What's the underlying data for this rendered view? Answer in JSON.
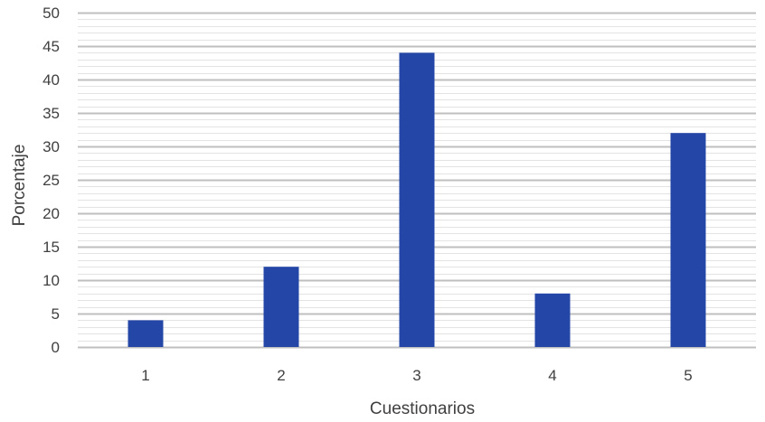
{
  "chart_data": {
    "type": "bar",
    "categories": [
      "1",
      "2",
      "3",
      "4",
      "5"
    ],
    "values": [
      4,
      12,
      44,
      8,
      32
    ],
    "title": "",
    "xlabel": "Cuestionarios",
    "ylabel": "Porcentaje",
    "ylim": [
      0,
      50
    ],
    "yticks": [
      "0",
      "5",
      "10",
      "15",
      "20",
      "25",
      "30",
      "35",
      "40",
      "45",
      "50"
    ],
    "grid": "major and minor horizontal",
    "legend": "none",
    "colors": {
      "bar": "#2446A6",
      "major_grid": "#BFBFBF",
      "minor_grid": "#E3E3E3",
      "text": "#404040"
    }
  }
}
